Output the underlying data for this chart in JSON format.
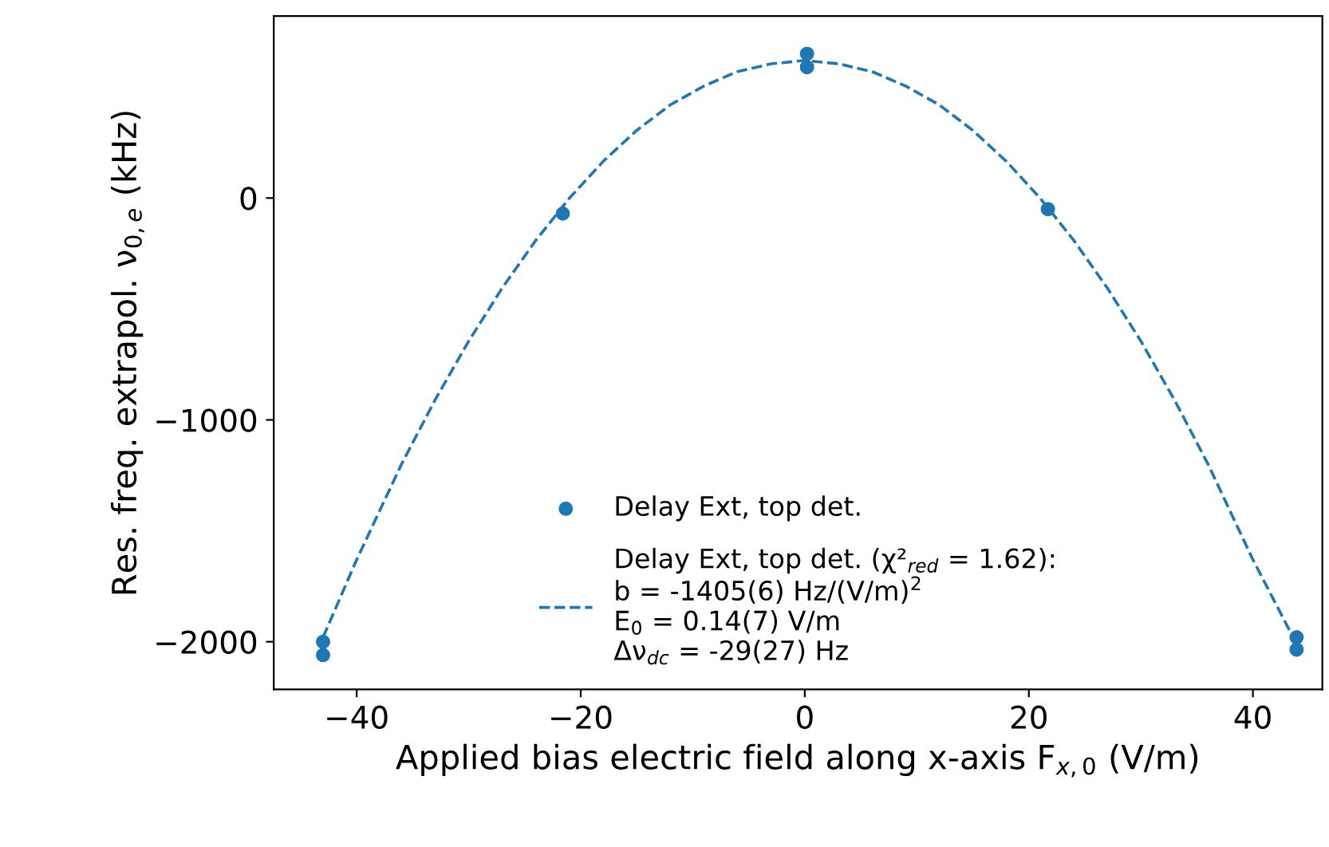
{
  "chart_data": {
    "type": "scatter",
    "xlabel": "Applied bias electric field along x-axis F$_{x,0}$ (V/m)",
    "ylabel": "Res. freq. extrapol. ν$_{0,e}$ (kHz)",
    "series": [
      {
        "name": "Delay Ext, top det.",
        "color": "#1f77b4",
        "marker": "circle",
        "x": [
          -43,
          -43,
          -21.6,
          0.2,
          0.2,
          21.7,
          43.9,
          43.9
        ],
        "values": [
          -2000,
          -2060,
          -70,
          590,
          650,
          -50,
          -1980,
          -2035
        ]
      },
      {
        "name": "Delay Ext, top det. (χ²$_{red}$ = 1.62):\nb = -1405(6) Hz/(V/m)$^{2}$\nE$_{0}$ = 0.14(7) V/m\nΔν$_{dc}$ = -29(27) Hz",
        "type": "line",
        "line_style": "dashed",
        "color": "#1f77b4",
        "x": [
          -43,
          -40,
          -36,
          -33,
          -30,
          -27,
          -24,
          -21,
          -18,
          -15,
          -12,
          -9,
          -6,
          -3,
          0,
          3,
          6,
          9,
          12,
          15,
          18,
          21,
          24,
          27,
          30,
          33,
          36,
          40,
          43.8
        ],
        "values": [
          -1980,
          -1630,
          -1200,
          -910,
          -645,
          -405,
          -190,
          0,
          165,
          305,
          420,
          505,
          570,
          605,
          620,
          605,
          570,
          505,
          420,
          305,
          165,
          0,
          -190,
          -405,
          -645,
          -910,
          -1200,
          -1630,
          -2000
        ]
      }
    ],
    "xlim": [
      -47.4,
      46.2
    ],
    "ylim": [
      -2215,
      820
    ],
    "xticks": [
      {
        "value": -40,
        "label": "−40"
      },
      {
        "value": -20,
        "label": "−20"
      },
      0,
      20,
      40
    ],
    "yticks": [
      {
        "value": -2000,
        "label": "−2000"
      },
      {
        "value": -1000,
        "label": "−1000"
      },
      0
    ],
    "grid": false,
    "legend": "bottom"
  }
}
